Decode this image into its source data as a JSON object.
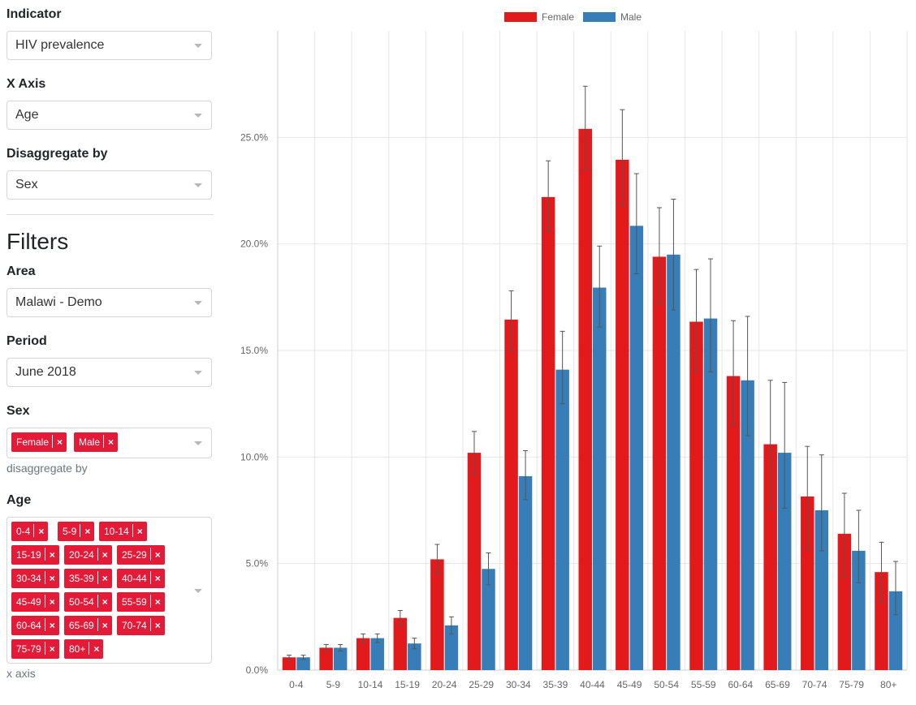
{
  "sidebar": {
    "indicator": {
      "label": "Indicator",
      "value": "HIV prevalence"
    },
    "x_axis": {
      "label": "X Axis",
      "value": "Age"
    },
    "disaggregate": {
      "label": "Disaggregate by",
      "value": "Sex"
    },
    "filters_title": "Filters",
    "area": {
      "label": "Area",
      "value": "Malawi - Demo"
    },
    "period": {
      "label": "Period",
      "value": "June 2018"
    },
    "sex": {
      "label": "Sex",
      "tags": [
        "Female",
        "Male"
      ],
      "help": "disaggregate by"
    },
    "age": {
      "label": "Age",
      "tags": [
        "0-4",
        "5-9",
        "10-14",
        "15-19",
        "20-24",
        "25-29",
        "30-34",
        "35-39",
        "40-44",
        "45-49",
        "50-54",
        "55-59",
        "60-64",
        "65-69",
        "70-74",
        "75-79",
        "80+"
      ],
      "help": "x axis"
    },
    "tag_remove_symbol": "×"
  },
  "colors": {
    "female": "#e31a1c",
    "male": "#377eb8",
    "tag": "#e31a38"
  },
  "chart_data": {
    "type": "bar",
    "categories": [
      "0-4",
      "5-9",
      "10-14",
      "15-19",
      "20-24",
      "25-29",
      "30-34",
      "35-39",
      "40-44",
      "45-49",
      "50-54",
      "55-59",
      "60-64",
      "65-69",
      "70-74",
      "75-79",
      "80+"
    ],
    "series": [
      {
        "name": "Female",
        "color": "#e31a1c",
        "values": [
          0.6,
          1.05,
          1.5,
          2.45,
          5.2,
          10.2,
          16.45,
          22.2,
          25.4,
          23.95,
          19.4,
          16.35,
          13.8,
          10.6,
          8.15,
          6.4,
          4.6
        ],
        "error_low": [
          0.5,
          0.9,
          1.3,
          2.1,
          4.5,
          9.2,
          15.0,
          20.6,
          23.5,
          21.8,
          17.2,
          14.0,
          11.5,
          7.6,
          5.7,
          4.4,
          3.2
        ],
        "error_high": [
          0.7,
          1.2,
          1.7,
          2.8,
          5.9,
          11.2,
          17.8,
          23.9,
          27.4,
          26.3,
          21.7,
          18.8,
          16.4,
          13.6,
          10.5,
          8.3,
          6.0
        ]
      },
      {
        "name": "Male",
        "color": "#377eb8",
        "values": [
          0.6,
          1.05,
          1.5,
          1.25,
          2.1,
          4.75,
          9.1,
          14.1,
          17.95,
          20.85,
          19.5,
          16.5,
          13.6,
          10.2,
          7.5,
          5.6,
          3.7
        ],
        "error_low": [
          0.5,
          0.9,
          1.3,
          1.0,
          1.7,
          4.0,
          8.0,
          12.5,
          16.1,
          18.6,
          16.9,
          14.0,
          11.0,
          7.6,
          5.6,
          4.1,
          2.6
        ],
        "error_high": [
          0.7,
          1.2,
          1.7,
          1.5,
          2.5,
          5.5,
          10.3,
          15.9,
          19.9,
          23.3,
          22.1,
          19.3,
          16.6,
          13.5,
          10.1,
          7.5,
          5.1
        ]
      }
    ],
    "y_ticks": [
      "0.0%",
      "5.0%",
      "10.0%",
      "15.0%",
      "20.0%",
      "25.0%"
    ],
    "ylim": [
      0,
      30
    ],
    "title": "",
    "xlabel": "",
    "ylabel": "",
    "grid": true,
    "legend": "top-center"
  }
}
